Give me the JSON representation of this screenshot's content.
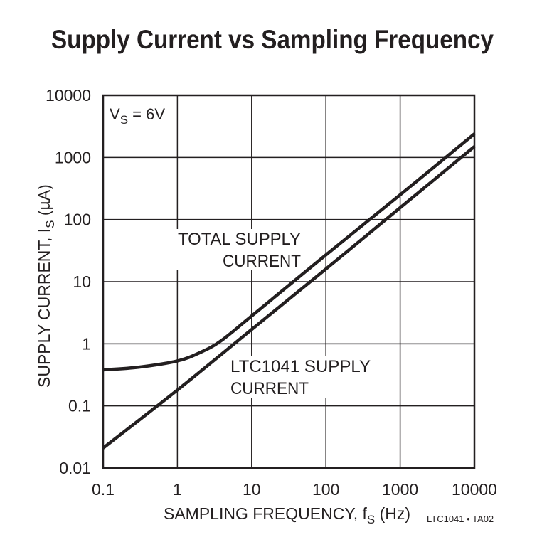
{
  "chart_data": {
    "type": "line",
    "title": "Supply Current vs Sampling Frequency",
    "xlabel": "SAMPLING FREQUENCY, f",
    "xlabel_sub": "S",
    "xlabel_unit": " (Hz)",
    "ylabel": "SUPPLY CURRENT, I",
    "ylabel_sub": "S",
    "ylabel_unit": " (µA)",
    "x_scale": "log",
    "y_scale": "log",
    "xlim": [
      0.1,
      10000
    ],
    "ylim": [
      0.01,
      10000
    ],
    "x_ticks": [
      "0.1",
      "1",
      "10",
      "100",
      "1000",
      "10000"
    ],
    "y_ticks": [
      "0.01",
      "0.1",
      "1",
      "10",
      "100",
      "1000",
      "10000"
    ],
    "grid": true,
    "line_color": "#231f20",
    "condition": {
      "main": "V",
      "sub": "S",
      "rest": " = 6V"
    },
    "series": [
      {
        "name": "TOTAL SUPPLY CURRENT",
        "label_lines": [
          "TOTAL SUPPLY",
          "CURRENT"
        ],
        "points": [
          [
            0.1,
            0.38
          ],
          [
            0.3,
            0.42
          ],
          [
            1,
            0.53
          ],
          [
            2,
            0.72
          ],
          [
            3.8,
            1.1
          ],
          [
            10,
            2.8
          ],
          [
            100,
            27
          ],
          [
            1000,
            250
          ],
          [
            10000,
            2400
          ]
        ]
      },
      {
        "name": "LTC1041 SUPPLY CURRENT",
        "label_lines": [
          "LTC1041 SUPPLY",
          "CURRENT"
        ],
        "points": [
          [
            0.1,
            0.021
          ],
          [
            1,
            0.18
          ],
          [
            10,
            1.7
          ],
          [
            100,
            16
          ],
          [
            1000,
            155
          ],
          [
            10000,
            1500
          ]
        ]
      }
    ],
    "footnote": "LTC1041 • TA02"
  }
}
